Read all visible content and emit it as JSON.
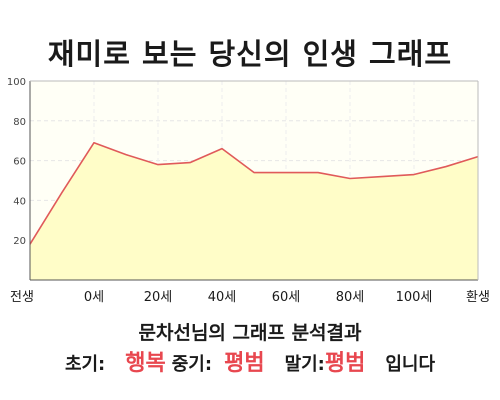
{
  "title": "재미로 보는 당신의 인생 그래프",
  "chart_data": {
    "type": "area",
    "x": [
      "전생",
      "",
      "0세",
      "",
      "20세",
      "",
      "40세",
      "",
      "60세",
      "",
      "80세",
      "",
      "100세",
      "",
      "환생"
    ],
    "values": [
      18,
      44,
      69,
      63,
      58,
      59,
      66,
      54,
      54,
      54,
      51,
      52,
      53,
      57,
      62
    ],
    "tick_labels": [
      "전생",
      "0세",
      "20세",
      "40세",
      "60세",
      "80세",
      "100세",
      "환생"
    ],
    "ylim": [
      0,
      100
    ],
    "yticks": [
      20,
      40,
      60,
      80,
      100
    ],
    "grid": true,
    "fill_color": "#fffdc8",
    "line_color": "#e05a5a"
  },
  "summary": {
    "headline": "문차선님의 그래프 분석결과",
    "early_label": "초기:",
    "early_value": "행복",
    "mid_label": "중기:",
    "mid_value": "평범",
    "late_label": "말기:",
    "late_value": "평범",
    "ending": "입니다",
    "highlight_color": "#e8474f"
  }
}
